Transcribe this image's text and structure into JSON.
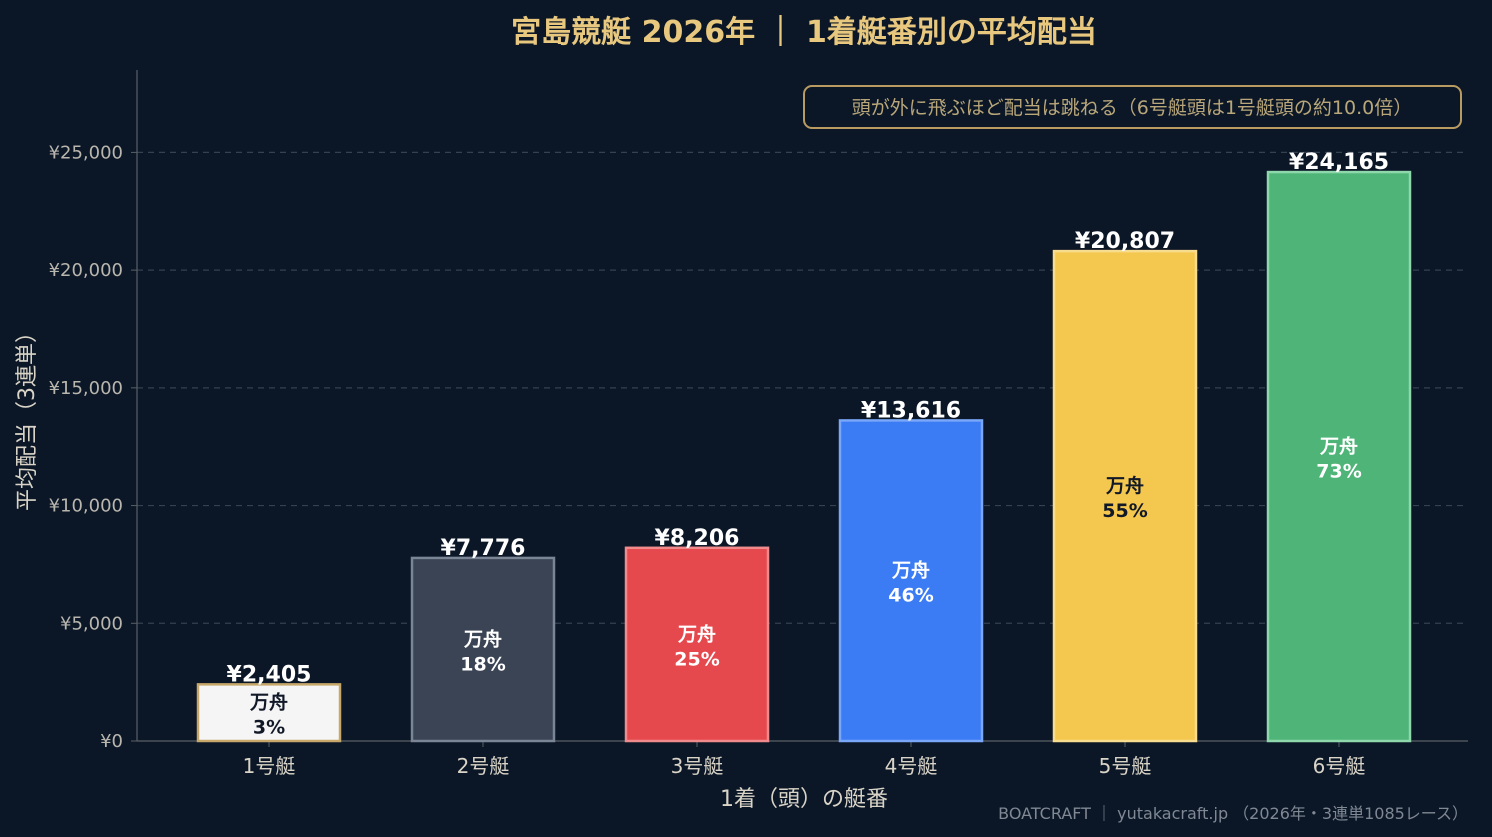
{
  "chart_data": {
    "type": "bar",
    "title": "宮島競艇 2026年 ｜ 1着艇番別の平均配当",
    "xlabel": "1着（頭）の艇番",
    "ylabel": "平均配当（3連単）",
    "categories": [
      "1号艇",
      "2号艇",
      "3号艇",
      "4号艇",
      "5号艇",
      "6号艇"
    ],
    "values": [
      2405,
      7776,
      8206,
      13616,
      20807,
      24165
    ],
    "value_labels": [
      "¥2,405",
      "¥7,776",
      "¥8,206",
      "¥13,616",
      "¥20,807",
      "¥24,165"
    ],
    "inner_label": "万舟",
    "inner_pcts": [
      "3%",
      "18%",
      "25%",
      "46%",
      "55%",
      "73%"
    ],
    "bar_colors": [
      "#f5f5f5",
      "#3b4454",
      "#e5484d",
      "#3b7cf5",
      "#f4c74e",
      "#4fb477"
    ],
    "bar_edge_colors": [
      "#c8a86a",
      "#7a8595",
      "#f08a8c",
      "#7aa7f8",
      "#f9dd8e",
      "#8fd8ab"
    ],
    "inner_text_colors": [
      "#111827",
      "#ffffff",
      "#ffffff",
      "#ffffff",
      "#111827",
      "#ffffff"
    ],
    "ylim": [
      0,
      28500
    ],
    "yticks": [
      0,
      5000,
      10000,
      15000,
      20000,
      25000
    ],
    "ytick_labels": [
      "¥0",
      "¥5,000",
      "¥10,000",
      "¥15,000",
      "¥20,000",
      "¥25,000"
    ],
    "grid": true,
    "annotation": "頭が外に飛ぶほど配当は跳ねる（6号艇頭は1号艇頭の約10.0倍）",
    "footer": "BOATCRAFT ｜ yutakacraft.jp （2026年・3連単1085レース）"
  },
  "colors": {
    "background": "#0b1727",
    "title": "#e8c77e",
    "grid": "#34414f",
    "axis": "#5a5f66",
    "annotation_border": "#b99b62"
  }
}
